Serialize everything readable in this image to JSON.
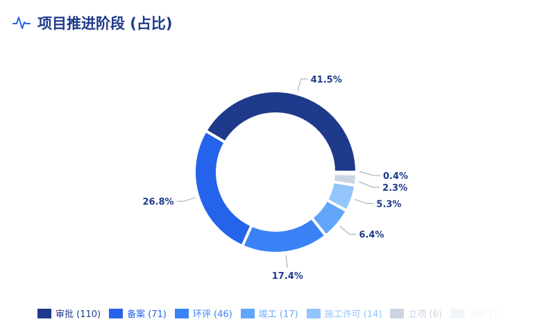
{
  "title": "项目推进阶段 (占比)",
  "icon": "activity-icon",
  "chart_data": {
    "type": "pie",
    "variant": "donut",
    "direction": "counterclockwise from east",
    "categories": [
      "审批",
      "备案",
      "环评",
      "竣工",
      "施工许可",
      "立项",
      "可研"
    ],
    "values": [
      110,
      71,
      46,
      17,
      14,
      6,
      1
    ],
    "labels": [
      "41.5%",
      "26.8%",
      "17.4%",
      "6.4%",
      "5.3%",
      "2.3%",
      "0.4%"
    ],
    "legend": [
      "审批 (110)",
      "备案 (71)",
      "环评 (46)",
      "竣工 (17)",
      "施工许可 (14)",
      "立项 (6)",
      "可研 (1)"
    ],
    "legend_position": "bottom",
    "colors": [
      "#1e3a8a",
      "#2563eb",
      "#3b82f6",
      "#60a5fa",
      "#93c5fd",
      "#cbd5e1",
      "#f1f5f9"
    ]
  }
}
